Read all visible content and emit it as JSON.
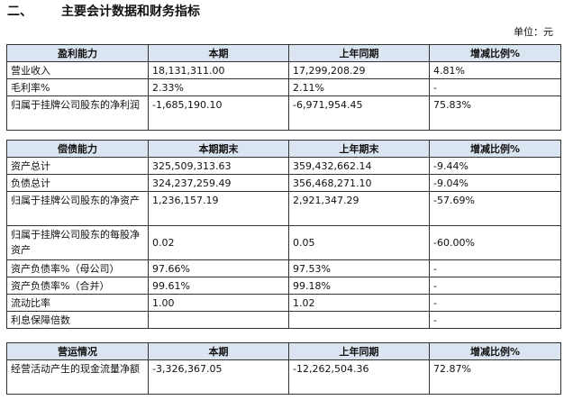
{
  "section": {
    "number": "二、",
    "title": "主要会计数据和财务指标"
  },
  "unit_label": "单位：元",
  "table_profit": {
    "headers": [
      "盈利能力",
      "本期",
      "上年同期",
      "增减比例%"
    ],
    "rows": [
      [
        "营业收入",
        "18,131,311.00",
        "17,299,208.29",
        "4.81%"
      ],
      [
        "毛利率%",
        "2.33%",
        "2.11%",
        "-"
      ],
      [
        "归属于挂牌公司股东的净利润",
        "-1,685,190.10",
        "-6,971,954.45",
        "75.83%"
      ]
    ]
  },
  "table_debt": {
    "headers": [
      "偿债能力",
      "本期期末",
      "上年期末",
      "增减比例%"
    ],
    "rows": [
      [
        "资产总计",
        "325,509,313.63",
        "359,432,662.14",
        "-9.44%"
      ],
      [
        "负债总计",
        "324,237,259.49",
        "356,468,271.10",
        "-9.04%"
      ],
      [
        "归属于挂牌公司股东的净资产",
        "1,236,157.19",
        "2,921,347.29",
        "-57.69%"
      ],
      [
        "归属于挂牌公司股东的每股净资产",
        "0.02",
        "0.05",
        "-60.00%"
      ],
      [
        "资产负债率%（母公司）",
        "97.66%",
        "97.53%",
        "-"
      ],
      [
        "资产负债率%（合并）",
        "99.61%",
        "99.18%",
        "-"
      ],
      [
        "流动比率",
        "1.00",
        "1.02",
        "-"
      ],
      [
        "利息保障倍数",
        "",
        "",
        "-"
      ]
    ]
  },
  "table_ops": {
    "headers": [
      "营运情况",
      "本期",
      "上年同期",
      "增减比例%"
    ],
    "rows": [
      [
        "经营活动产生的现金流量净额",
        "-3,326,367.05",
        "-12,262,504.36",
        "72.87%"
      ]
    ]
  }
}
